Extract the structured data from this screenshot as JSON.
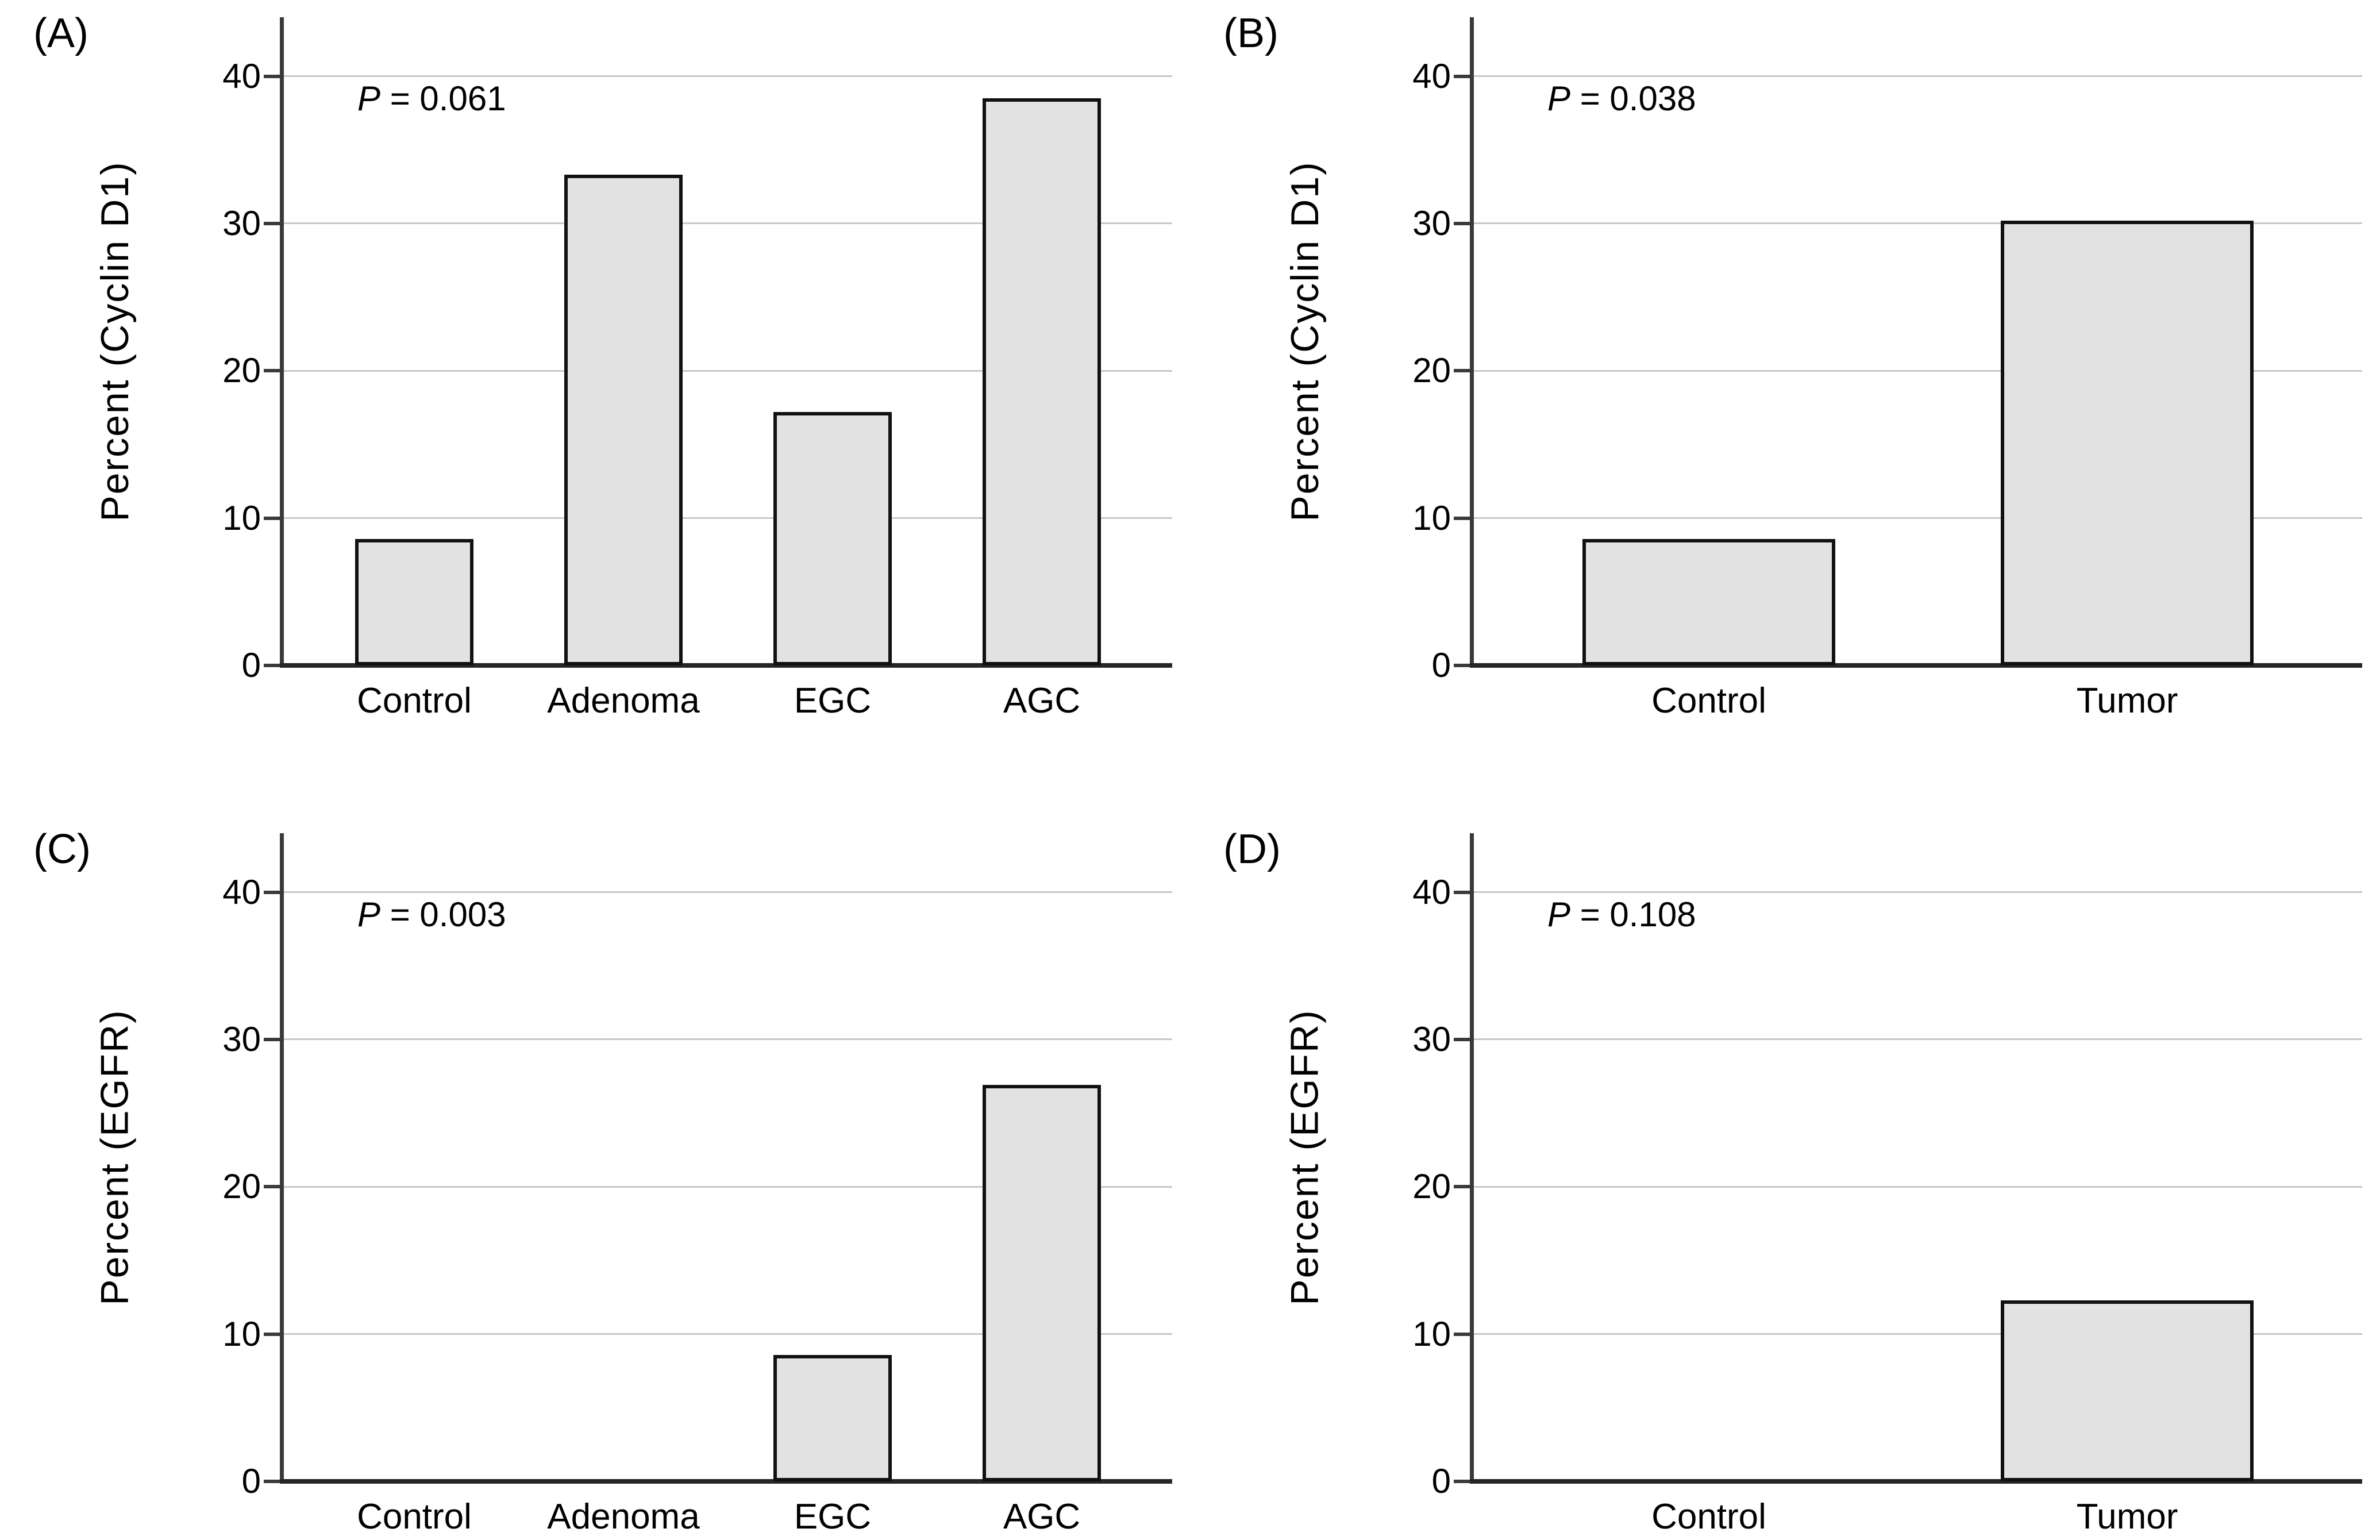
{
  "figure": {
    "background": "#ffffff",
    "bar_fill": "#e2e2e2",
    "bar_border": "#111111",
    "gridline_color": "#c8c8c8",
    "axis_color": "#3a3a3a",
    "text_color": "#000000"
  },
  "chart_data": [
    {
      "type": "bar",
      "panel_label": "(A)",
      "title": "",
      "ylabel": "Percent (Cyclin D1)",
      "xlabel": "",
      "p_label": "P",
      "p_value": " = 0.061",
      "categories": [
        "Control",
        "Adenoma",
        "EGC",
        "AGC"
      ],
      "values": [
        8.6,
        33.3,
        17.2,
        38.5
      ],
      "yticks": [
        0,
        10,
        20,
        30,
        40
      ],
      "ylim": [
        0,
        44
      ],
      "grid": true,
      "legend": "none"
    },
    {
      "type": "bar",
      "panel_label": "(B)",
      "title": "",
      "ylabel": "Percent (Cyclin D1)",
      "xlabel": "",
      "p_label": "P",
      "p_value": " = 0.038",
      "categories": [
        "Control",
        "Tumor"
      ],
      "values": [
        8.6,
        30.2
      ],
      "yticks": [
        0,
        10,
        20,
        30,
        40
      ],
      "ylim": [
        0,
        44
      ],
      "grid": true,
      "legend": "none"
    },
    {
      "type": "bar",
      "panel_label": "(C)",
      "title": "",
      "ylabel": "Percent (EGFR)",
      "xlabel": "",
      "p_label": "P",
      "p_value": " = 0.003",
      "categories": [
        "Control",
        "Adenoma",
        "EGC",
        "AGC"
      ],
      "values": [
        0,
        0,
        8.6,
        26.9
      ],
      "yticks": [
        0,
        10,
        20,
        30,
        40
      ],
      "ylim": [
        0,
        44
      ],
      "grid": true,
      "legend": "none"
    },
    {
      "type": "bar",
      "panel_label": "(D)",
      "title": "",
      "ylabel": "Percent (EGFR)",
      "xlabel": "",
      "p_label": "P",
      "p_value": " = 0.108",
      "categories": [
        "Control",
        "Tumor"
      ],
      "values": [
        0,
        12.3
      ],
      "yticks": [
        0,
        10,
        20,
        30,
        40
      ],
      "ylim": [
        0,
        44
      ],
      "grid": true,
      "legend": "none"
    }
  ]
}
